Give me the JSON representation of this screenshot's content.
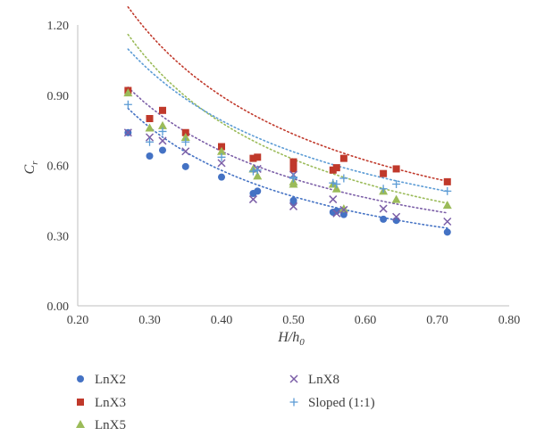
{
  "chart_data": {
    "type": "scatter",
    "xlabel": {
      "main": "H/h",
      "sub": "0"
    },
    "ylabel": {
      "main": "C",
      "sub": "r"
    },
    "xlim": [
      0.2,
      0.8
    ],
    "ylim": [
      0.0,
      1.2
    ],
    "xticks": [
      "0.20",
      "0.30",
      "0.40",
      "0.50",
      "0.60",
      "0.70",
      "0.80"
    ],
    "yticks": [
      "0.00",
      "0.30",
      "0.60",
      "0.90",
      "1.20"
    ],
    "xtick_values": [
      0.2,
      0.3,
      0.4,
      0.5,
      0.6,
      0.7,
      0.8
    ],
    "ytick_values": [
      0.0,
      0.3,
      0.6,
      0.9,
      1.2
    ],
    "grid": false,
    "legend_position": "bottom",
    "series": [
      {
        "name": "LnX2",
        "marker": "circle",
        "color": "#4472c4",
        "points": [
          [
            0.27,
            0.74
          ],
          [
            0.3,
            0.64
          ],
          [
            0.318,
            0.665
          ],
          [
            0.35,
            0.595
          ],
          [
            0.4,
            0.55
          ],
          [
            0.444,
            0.48
          ],
          [
            0.45,
            0.49
          ],
          [
            0.5,
            0.45
          ],
          [
            0.5,
            0.44
          ],
          [
            0.555,
            0.4
          ],
          [
            0.56,
            0.405
          ],
          [
            0.57,
            0.39
          ],
          [
            0.625,
            0.37
          ],
          [
            0.643,
            0.365
          ],
          [
            0.714,
            0.315
          ]
        ],
        "trend": {
          "a": 0.24,
          "b": -0.96,
          "x_range": [
            0.27,
            0.714
          ]
        }
      },
      {
        "name": "LnX3",
        "marker": "square",
        "color": "#c0392b",
        "points": [
          [
            0.27,
            0.92
          ],
          [
            0.3,
            0.8
          ],
          [
            0.318,
            0.835
          ],
          [
            0.35,
            0.74
          ],
          [
            0.4,
            0.68
          ],
          [
            0.444,
            0.63
          ],
          [
            0.45,
            0.635
          ],
          [
            0.5,
            0.615
          ],
          [
            0.5,
            0.6
          ],
          [
            0.5,
            0.585
          ],
          [
            0.555,
            0.58
          ],
          [
            0.56,
            0.59
          ],
          [
            0.57,
            0.63
          ],
          [
            0.625,
            0.565
          ],
          [
            0.643,
            0.585
          ],
          [
            0.714,
            0.53
          ]
        ],
        "trend": {
          "a": 0.393,
          "b": -0.9,
          "x_range": [
            0.27,
            0.714
          ]
        }
      },
      {
        "name": "LnX5",
        "marker": "triangle",
        "color": "#9bbb59",
        "points": [
          [
            0.27,
            0.91
          ],
          [
            0.3,
            0.76
          ],
          [
            0.318,
            0.77
          ],
          [
            0.35,
            0.72
          ],
          [
            0.4,
            0.66
          ],
          [
            0.444,
            0.585
          ],
          [
            0.45,
            0.555
          ],
          [
            0.5,
            0.53
          ],
          [
            0.5,
            0.52
          ],
          [
            0.555,
            0.52
          ],
          [
            0.56,
            0.5
          ],
          [
            0.57,
            0.415
          ],
          [
            0.625,
            0.49
          ],
          [
            0.643,
            0.455
          ],
          [
            0.714,
            0.43
          ]
        ],
        "trend": {
          "a": 0.313,
          "b": -1.0,
          "x_range": [
            0.27,
            0.714
          ]
        }
      },
      {
        "name": "LnX8",
        "marker": "x",
        "color": "#7b5ea7",
        "points": [
          [
            0.27,
            0.74
          ],
          [
            0.3,
            0.72
          ],
          [
            0.318,
            0.705
          ],
          [
            0.35,
            0.66
          ],
          [
            0.4,
            0.61
          ],
          [
            0.444,
            0.455
          ],
          [
            0.45,
            0.585
          ],
          [
            0.5,
            0.425
          ],
          [
            0.5,
            0.56
          ],
          [
            0.555,
            0.455
          ],
          [
            0.56,
            0.395
          ],
          [
            0.57,
            0.41
          ],
          [
            0.625,
            0.415
          ],
          [
            0.643,
            0.38
          ],
          [
            0.714,
            0.36
          ]
        ],
        "trend": {
          "a": 0.295,
          "b": -0.88,
          "x_range": [
            0.27,
            0.714
          ]
        }
      },
      {
        "name": "Sloped (1:1)",
        "marker": "plus",
        "color": "#5b9bd5",
        "points": [
          [
            0.27,
            0.86
          ],
          [
            0.3,
            0.7
          ],
          [
            0.318,
            0.745
          ],
          [
            0.35,
            0.7
          ],
          [
            0.4,
            0.635
          ],
          [
            0.444,
            0.575
          ],
          [
            0.45,
            0.58
          ],
          [
            0.5,
            0.55
          ],
          [
            0.5,
            0.545
          ],
          [
            0.555,
            0.525
          ],
          [
            0.56,
            0.52
          ],
          [
            0.57,
            0.545
          ],
          [
            0.625,
            0.5
          ],
          [
            0.643,
            0.52
          ],
          [
            0.714,
            0.49
          ]
        ],
        "trend": {
          "a": 0.37,
          "b": -0.83,
          "x_range": [
            0.27,
            0.714
          ]
        }
      }
    ]
  }
}
